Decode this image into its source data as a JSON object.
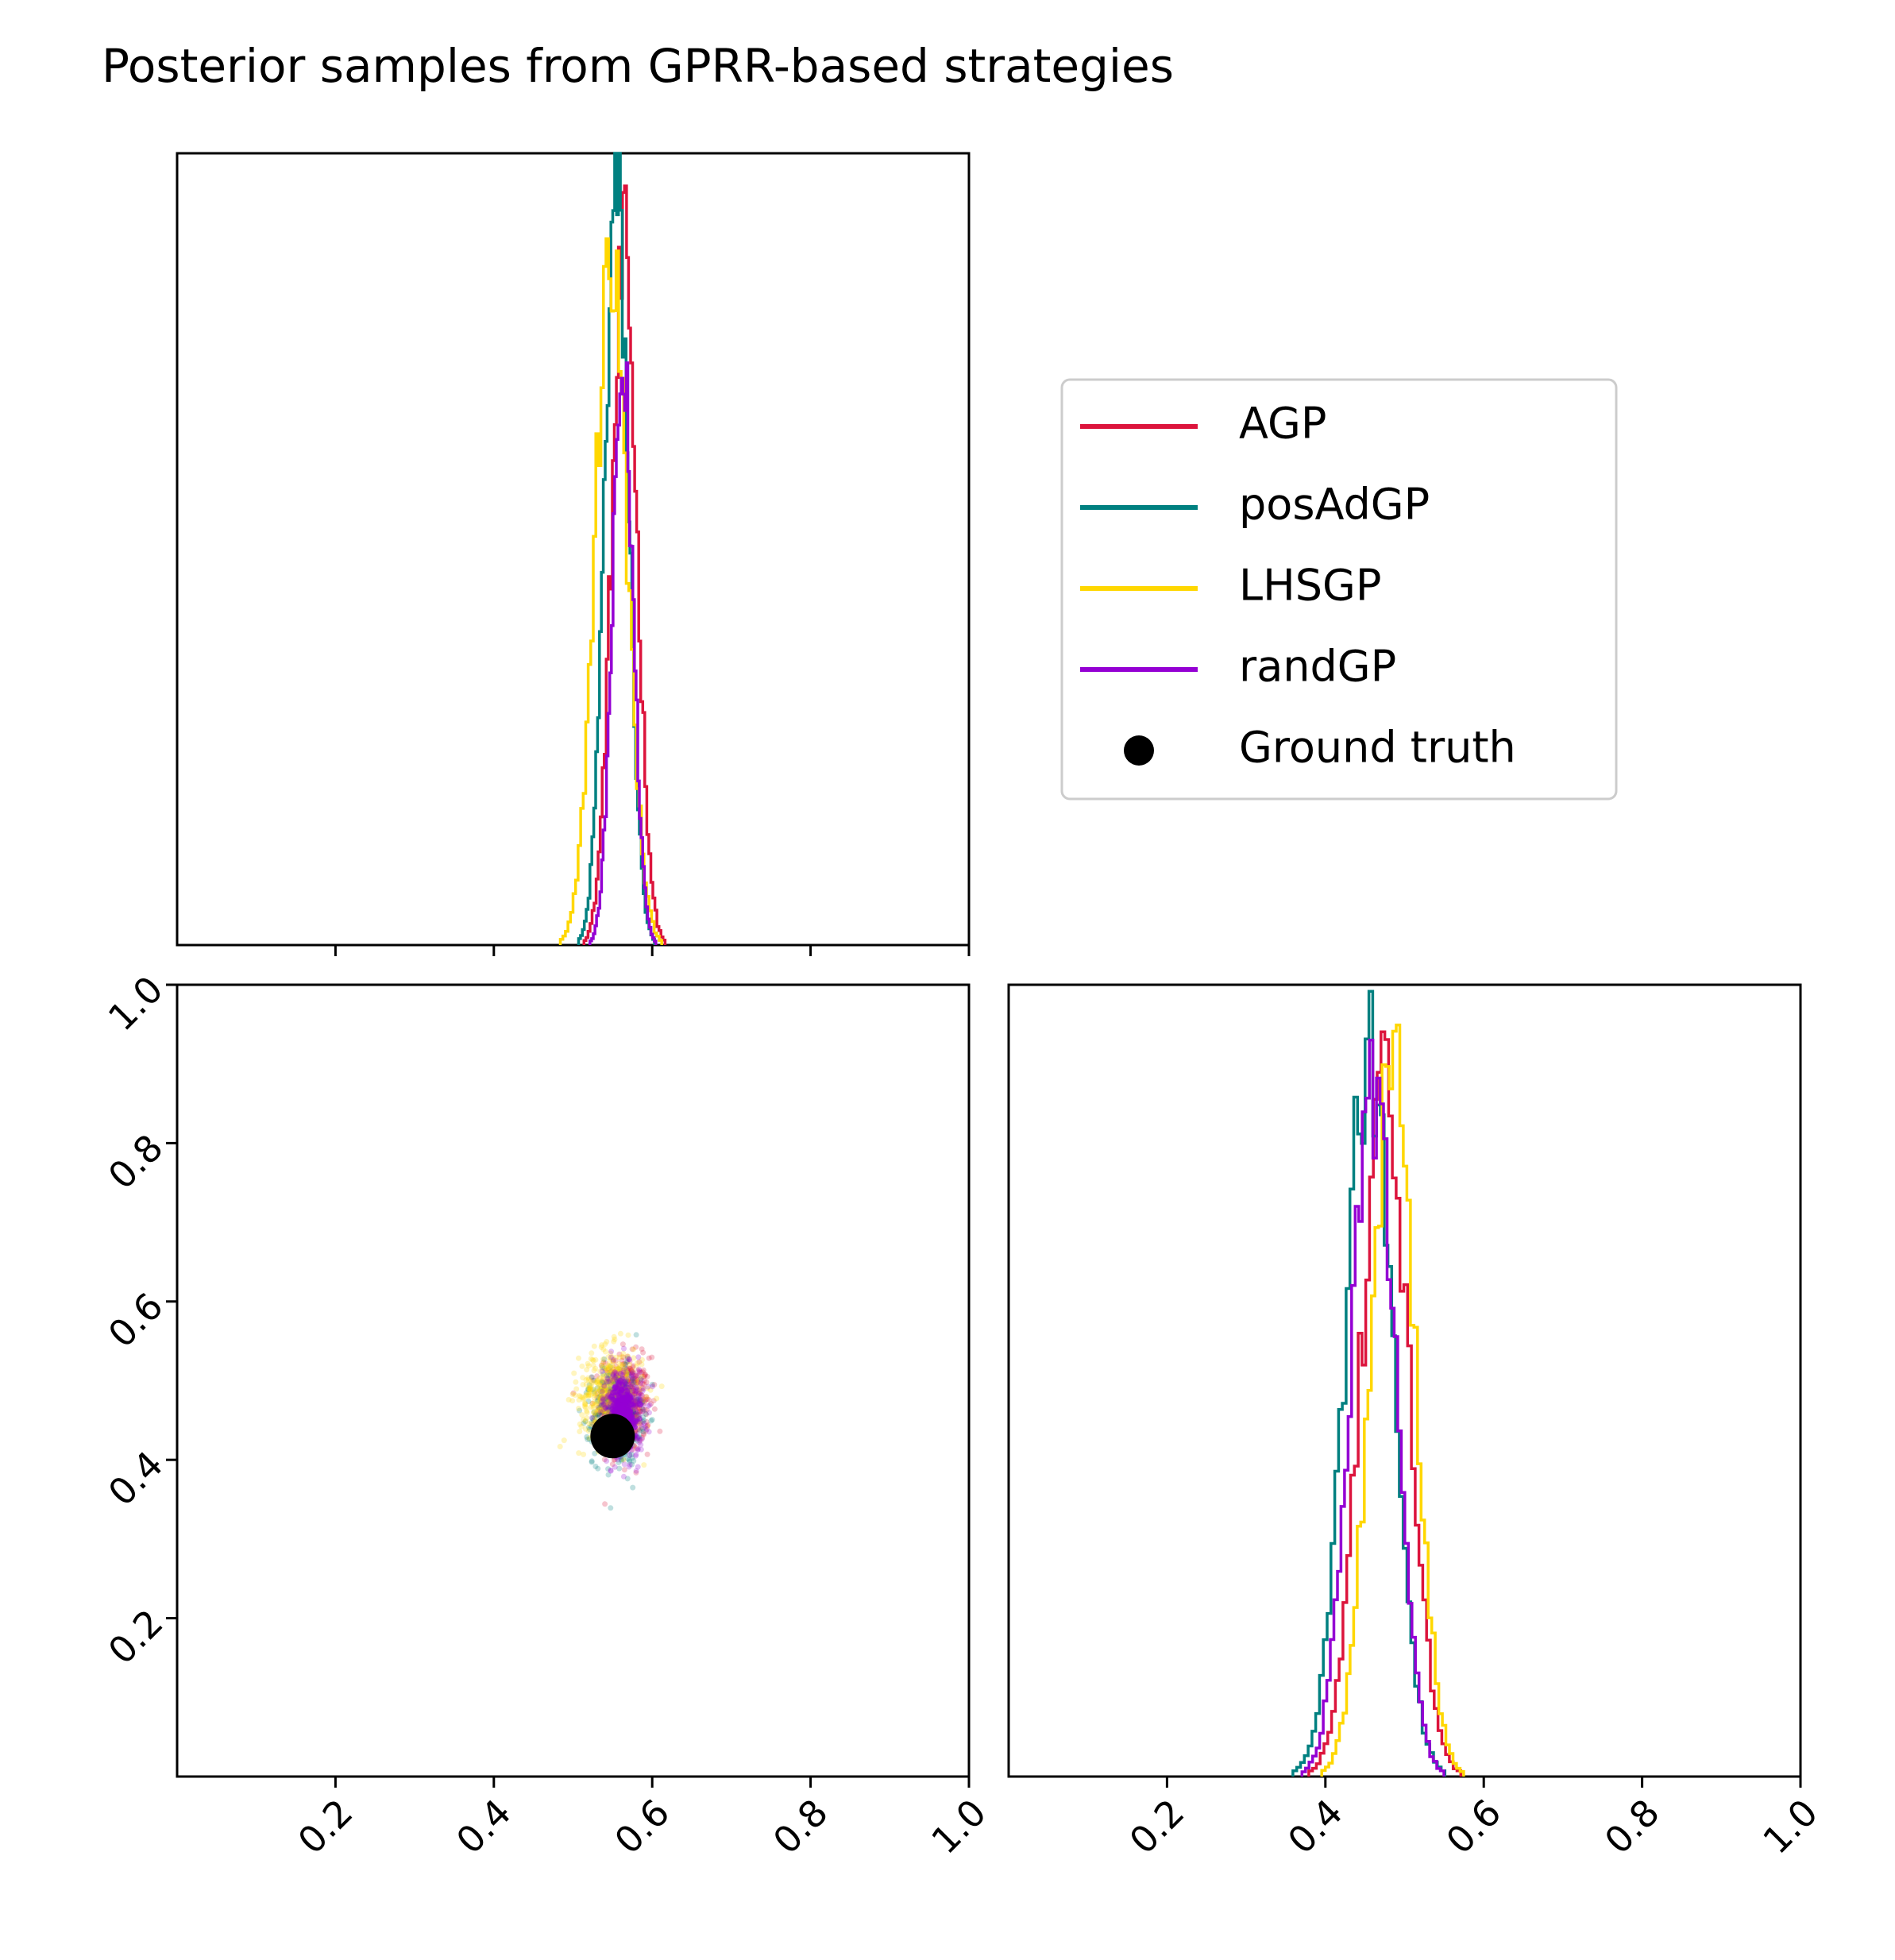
{
  "title": "Posterior samples from GPRR-based strategies",
  "colors": {
    "AGP": "#dc143c",
    "posAdGP": "#008080",
    "LHSGP": "#ffd700",
    "randGP": "#9400d3",
    "ground_truth": "#000000"
  },
  "legend": {
    "placement": "upper-right panel",
    "entries": [
      {
        "label": "AGP",
        "marker": "line",
        "color": "#dc143c"
      },
      {
        "label": "posAdGP",
        "marker": "line",
        "color": "#008080"
      },
      {
        "label": "LHSGP",
        "marker": "line",
        "color": "#ffd700"
      },
      {
        "label": "randGP",
        "marker": "line",
        "color": "#9400d3"
      },
      {
        "label": "Ground truth",
        "marker": "dot",
        "color": "#000000"
      }
    ]
  },
  "chart_data": [
    {
      "type": "histogram",
      "panel": "top-left: marginal of parameter 1 (x)",
      "xlim": [
        0,
        1
      ],
      "xticks": [
        "0.2",
        "0.4",
        "0.6",
        "0.8",
        "1.0"
      ],
      "x_tick_labels_shown": false,
      "y_ticks_shown": false,
      "series": [
        {
          "name": "AGP",
          "color": "#dc143c",
          "center": 0.565,
          "spread": 0.016,
          "peak": 0.86
        },
        {
          "name": "posAdGP",
          "color": "#008080",
          "center": 0.555,
          "spread": 0.015,
          "peak": 0.95
        },
        {
          "name": "LHSGP",
          "color": "#ffd700",
          "center": 0.548,
          "spread": 0.02,
          "peak": 0.87
        },
        {
          "name": "randGP",
          "color": "#9400d3",
          "center": 0.563,
          "spread": 0.013,
          "peak": 0.72
        }
      ]
    },
    {
      "type": "scatter",
      "panel": "bottom-left: joint samples (x = parameter 1, y = parameter 2)",
      "xlim": [
        0,
        1
      ],
      "ylim": [
        0,
        1
      ],
      "xticks": [
        "0.2",
        "0.4",
        "0.6",
        "0.8",
        "1.0"
      ],
      "yticks": [
        "0.2",
        "0.4",
        "0.6",
        "0.8",
        "1.0"
      ],
      "series": [
        {
          "name": "AGP",
          "color": "#dc143c",
          "center": [
            0.565,
            0.47
          ],
          "spread": [
            0.016,
            0.03
          ]
        },
        {
          "name": "posAdGP",
          "color": "#008080",
          "center": [
            0.555,
            0.455
          ],
          "spread": [
            0.015,
            0.03
          ]
        },
        {
          "name": "LHSGP",
          "color": "#ffd700",
          "center": [
            0.548,
            0.48
          ],
          "spread": [
            0.02,
            0.03
          ]
        },
        {
          "name": "randGP",
          "color": "#9400d3",
          "center": [
            0.563,
            0.46
          ],
          "spread": [
            0.013,
            0.028
          ]
        }
      ],
      "ground_truth": {
        "name": "Ground truth",
        "x": 0.55,
        "y": 0.43
      }
    },
    {
      "type": "histogram",
      "panel": "bottom-right: marginal of parameter 2",
      "xlim": [
        0,
        1
      ],
      "xticks": [
        "0.2",
        "0.4",
        "0.6",
        "0.8",
        "1.0"
      ],
      "y_ticks_shown": false,
      "series": [
        {
          "name": "AGP",
          "color": "#dc143c",
          "center": 0.475,
          "spread": 0.03,
          "peak": 0.86
        },
        {
          "name": "posAdGP",
          "color": "#008080",
          "center": 0.455,
          "spread": 0.03,
          "peak": 0.9
        },
        {
          "name": "LHSGP",
          "color": "#ffd700",
          "center": 0.485,
          "spread": 0.028,
          "peak": 0.9
        },
        {
          "name": "randGP",
          "color": "#9400d3",
          "center": 0.46,
          "spread": 0.028,
          "peak": 0.88
        }
      ]
    }
  ]
}
